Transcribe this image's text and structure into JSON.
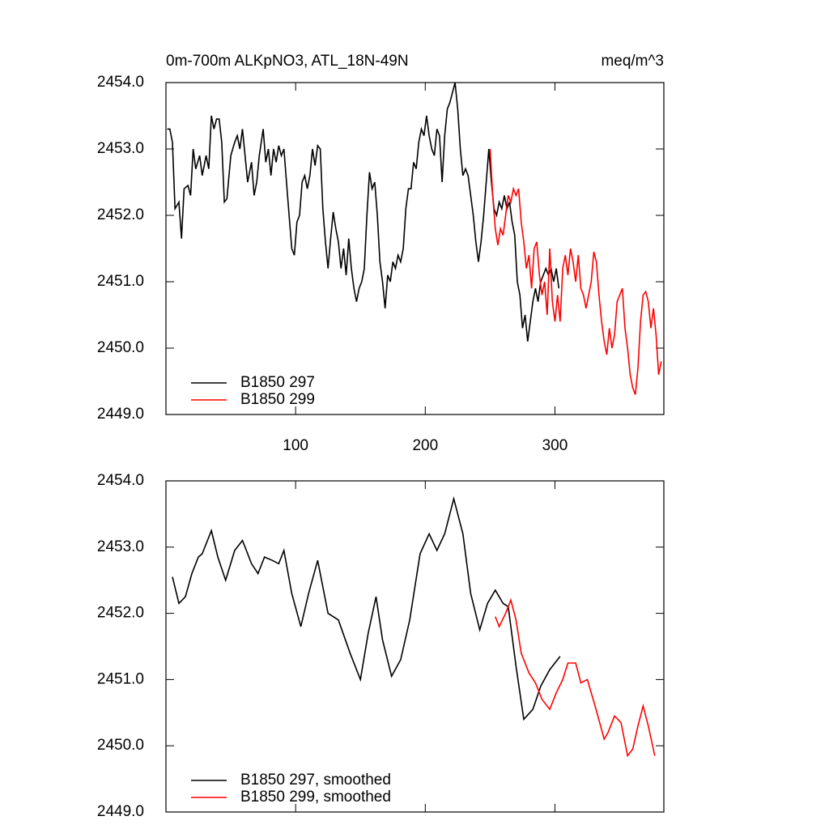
{
  "chart_data": [
    {
      "type": "line",
      "title": "0m-700m ALKpNO3, ATL_18N-49N",
      "right_title": "meq/m^3",
      "xlim": [
        0,
        384
      ],
      "xticks": [
        100,
        200,
        300
      ],
      "xtick_labels": true,
      "ylim": [
        2449,
        2454
      ],
      "yticks": [
        {
          "value": 2449,
          "label": "2449.0"
        },
        {
          "value": 2450,
          "label": "2450.0"
        },
        {
          "value": 2451,
          "label": "2451.0"
        },
        {
          "value": 2452,
          "label": "2452.0"
        },
        {
          "value": 2453,
          "label": "2453.0"
        },
        {
          "value": 2454,
          "label": "2454.0"
        }
      ],
      "legend": "lower left",
      "series": [
        {
          "name": "B1850 297",
          "color": "#000000",
          "x": [
            1,
            3,
            5,
            7,
            10,
            12,
            14,
            17,
            19,
            21,
            23,
            26,
            28,
            31,
            33,
            35,
            37,
            39,
            41,
            43,
            45,
            47,
            50,
            53,
            55,
            57,
            59,
            61,
            63,
            66,
            68,
            70,
            72,
            75,
            77,
            79,
            81,
            83,
            85,
            87,
            89,
            91,
            93,
            95,
            97,
            99,
            101,
            103,
            105,
            107,
            109,
            111,
            113,
            115,
            117,
            119,
            121,
            123,
            125,
            127,
            129,
            131,
            133,
            135,
            137,
            139,
            141,
            143,
            145,
            147,
            149,
            151,
            153,
            155,
            157,
            159,
            161,
            163,
            165,
            167,
            169,
            171,
            173,
            175,
            177,
            179,
            181,
            183,
            185,
            187,
            189,
            191,
            193,
            195,
            197,
            199,
            201,
            203,
            205,
            207,
            209,
            211,
            213,
            215,
            217,
            219,
            221,
            223,
            225,
            227,
            229,
            231,
            233,
            235,
            237,
            239,
            241,
            243,
            245,
            247,
            249,
            251,
            253,
            255,
            257,
            259,
            261,
            263,
            265,
            267,
            269,
            271,
            273,
            275,
            277,
            279,
            281,
            283,
            285,
            287,
            289,
            291,
            293,
            295,
            297,
            299,
            301,
            303
          ],
          "values": [
            2453.3,
            2453.3,
            2453.1,
            2452.1,
            2452.2,
            2451.65,
            2452.4,
            2452.45,
            2452.3,
            2453.0,
            2452.7,
            2452.9,
            2452.6,
            2452.9,
            2452.7,
            2453.5,
            2453.3,
            2453.45,
            2453.45,
            2453.1,
            2452.2,
            2452.25,
            2452.9,
            2453.1,
            2453.2,
            2453.0,
            2453.3,
            2452.9,
            2452.5,
            2452.8,
            2452.3,
            2452.5,
            2452.9,
            2453.3,
            2452.8,
            2453.0,
            2452.6,
            2453.0,
            2452.8,
            2453.05,
            2452.9,
            2453.0,
            2452.5,
            2452.0,
            2451.5,
            2451.4,
            2451.9,
            2452.0,
            2452.5,
            2452.6,
            2452.4,
            2452.6,
            2453.0,
            2452.75,
            2453.05,
            2453.0,
            2452.1,
            2451.6,
            2451.2,
            2451.65,
            2452.05,
            2451.8,
            2451.6,
            2451.2,
            2451.5,
            2451.1,
            2451.65,
            2451.2,
            2450.9,
            2450.7,
            2450.9,
            2451.0,
            2451.2,
            2452.0,
            2452.65,
            2452.4,
            2452.5,
            2452.0,
            2451.3,
            2451.0,
            2450.6,
            2451.1,
            2451.0,
            2451.3,
            2451.2,
            2451.4,
            2451.3,
            2451.5,
            2452.1,
            2452.4,
            2452.4,
            2452.8,
            2452.7,
            2453.1,
            2453.3,
            2453.2,
            2453.5,
            2453.2,
            2453.0,
            2452.9,
            2453.3,
            2453.2,
            2452.5,
            2453.2,
            2453.6,
            2453.7,
            2453.85,
            2454.0,
            2453.6,
            2453.0,
            2452.6,
            2452.7,
            2452.6,
            2452.3,
            2452.0,
            2451.6,
            2451.3,
            2451.6,
            2452.0,
            2452.5,
            2453.0,
            2452.5,
            2452.1,
            2452.0,
            2452.2,
            2452.1,
            2452.3,
            2452.1,
            2452.2,
            2451.9,
            2451.7,
            2451.0,
            2450.8,
            2450.3,
            2450.5,
            2450.1,
            2450.4,
            2450.7,
            2450.9,
            2450.7,
            2451.0,
            2451.1,
            2451.2,
            2451.1,
            2451.2,
            2451.0,
            2451.2,
            2450.9
          ]
        },
        {
          "name": "B1850 299",
          "color": "#ff0000",
          "x": [
            250,
            252,
            254,
            256,
            258,
            260,
            262,
            264,
            266,
            268,
            270,
            272,
            274,
            276,
            278,
            280,
            282,
            284,
            286,
            288,
            290,
            292,
            294,
            296,
            298,
            300,
            302,
            304,
            306,
            308,
            310,
            312,
            314,
            316,
            318,
            320,
            322,
            324,
            326,
            328,
            330,
            332,
            334,
            336,
            338,
            340,
            342,
            344,
            346,
            348,
            350,
            352,
            354,
            356,
            358,
            360,
            362,
            364,
            366,
            368,
            370,
            372,
            374,
            376,
            378,
            380,
            382
          ],
          "values": [
            2453.0,
            2452.3,
            2451.8,
            2451.55,
            2451.8,
            2451.7,
            2452.0,
            2452.3,
            2452.2,
            2452.4,
            2452.3,
            2452.4,
            2451.9,
            2451.6,
            2451.2,
            2451.4,
            2450.9,
            2451.5,
            2451.6,
            2451.1,
            2450.8,
            2451.0,
            2450.5,
            2451.5,
            2450.7,
            2450.4,
            2450.8,
            2450.4,
            2451.2,
            2451.4,
            2451.1,
            2451.5,
            2451.3,
            2451.0,
            2451.4,
            2450.9,
            2450.8,
            2450.6,
            2450.8,
            2451.0,
            2451.45,
            2451.3,
            2450.8,
            2450.4,
            2450.1,
            2449.9,
            2450.3,
            2450.0,
            2450.2,
            2450.7,
            2450.8,
            2450.9,
            2450.3,
            2450.0,
            2449.6,
            2449.4,
            2449.3,
            2449.7,
            2450.4,
            2450.8,
            2450.85,
            2450.7,
            2450.3,
            2450.6,
            2450.2,
            2449.6,
            2449.8
          ]
        }
      ]
    },
    {
      "type": "line",
      "xlim": [
        0,
        384
      ],
      "xticks": [
        100,
        200,
        300
      ],
      "xtick_labels": false,
      "ylim": [
        2449,
        2454
      ],
      "yticks": [
        {
          "value": 2449,
          "label": "2449.0"
        },
        {
          "value": 2450,
          "label": "2450.0"
        },
        {
          "value": 2451,
          "label": "2451.0"
        },
        {
          "value": 2452,
          "label": "2452.0"
        },
        {
          "value": 2453,
          "label": "2453.0"
        },
        {
          "value": 2454,
          "label": "2454.0"
        }
      ],
      "legend": "lower left",
      "series": [
        {
          "name": "B1850 297, smoothed",
          "color": "#000000",
          "x": [
            5,
            10,
            15,
            20,
            25,
            28,
            35,
            40,
            46,
            53,
            59,
            66,
            71,
            76,
            82,
            87,
            91,
            97,
            104,
            110,
            117,
            125,
            133,
            142,
            150,
            156,
            162,
            167,
            174,
            181,
            188,
            196,
            203,
            209,
            215,
            222,
            229,
            235,
            242,
            248,
            254,
            260,
            264,
            270,
            276,
            283,
            289,
            296,
            304
          ],
          "values": [
            2452.55,
            2452.15,
            2452.25,
            2452.6,
            2452.85,
            2452.9,
            2453.25,
            2452.85,
            2452.5,
            2452.95,
            2453.1,
            2452.75,
            2452.6,
            2452.85,
            2452.8,
            2452.75,
            2452.95,
            2452.3,
            2451.8,
            2452.3,
            2452.8,
            2452.0,
            2451.9,
            2451.4,
            2451.0,
            2451.7,
            2452.25,
            2451.6,
            2451.05,
            2451.3,
            2451.9,
            2452.9,
            2453.2,
            2452.95,
            2453.2,
            2453.73,
            2453.2,
            2452.3,
            2451.75,
            2452.15,
            2452.35,
            2452.15,
            2452.1,
            2451.2,
            2450.4,
            2450.55,
            2450.9,
            2451.15,
            2451.35
          ]
        },
        {
          "name": "B1850 299, smoothed",
          "color": "#ff0000",
          "x": [
            254,
            257,
            262,
            266,
            270,
            274,
            280,
            285,
            290,
            296,
            301,
            306,
            310,
            316,
            320,
            325,
            331,
            338,
            341,
            346,
            351,
            356,
            360,
            364,
            368,
            372,
            377
          ],
          "values": [
            2451.95,
            2451.8,
            2452.0,
            2452.2,
            2451.9,
            2451.4,
            2451.1,
            2450.95,
            2450.7,
            2450.55,
            2450.8,
            2451.0,
            2451.25,
            2451.25,
            2450.95,
            2451.0,
            2450.6,
            2450.1,
            2450.2,
            2450.45,
            2450.35,
            2449.85,
            2449.95,
            2450.3,
            2450.6,
            2450.3,
            2449.85
          ]
        }
      ]
    }
  ]
}
